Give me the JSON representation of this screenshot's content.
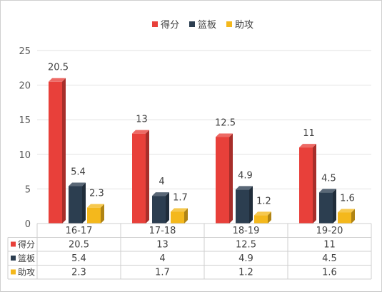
{
  "chart_data": {
    "type": "bar",
    "categories": [
      "16-17",
      "17-18",
      "18-19",
      "19-20"
    ],
    "series": [
      {
        "name": "得分",
        "values": [
          20.5,
          13,
          12.5,
          11
        ],
        "color": "#e8403a"
      },
      {
        "name": "篮板",
        "values": [
          5.4,
          4,
          4.9,
          4.5
        ],
        "color": "#2c3e50"
      },
      {
        "name": "助攻",
        "values": [
          2.3,
          1.7,
          1.2,
          1.6
        ],
        "color": "#f4b81c"
      }
    ],
    "value_labels": [
      [
        "20.5",
        "13",
        "12.5",
        "11"
      ],
      [
        "5.4",
        "4",
        "4.9",
        "4.5"
      ],
      [
        "2.3",
        "1.7",
        "1.2",
        "1.6"
      ]
    ],
    "ylim": [
      0,
      25
    ],
    "yticks": [
      0,
      5,
      10,
      15,
      20,
      25
    ],
    "legend_position": "top-center",
    "grid": true,
    "data_table": true,
    "style": "3d-bars"
  }
}
